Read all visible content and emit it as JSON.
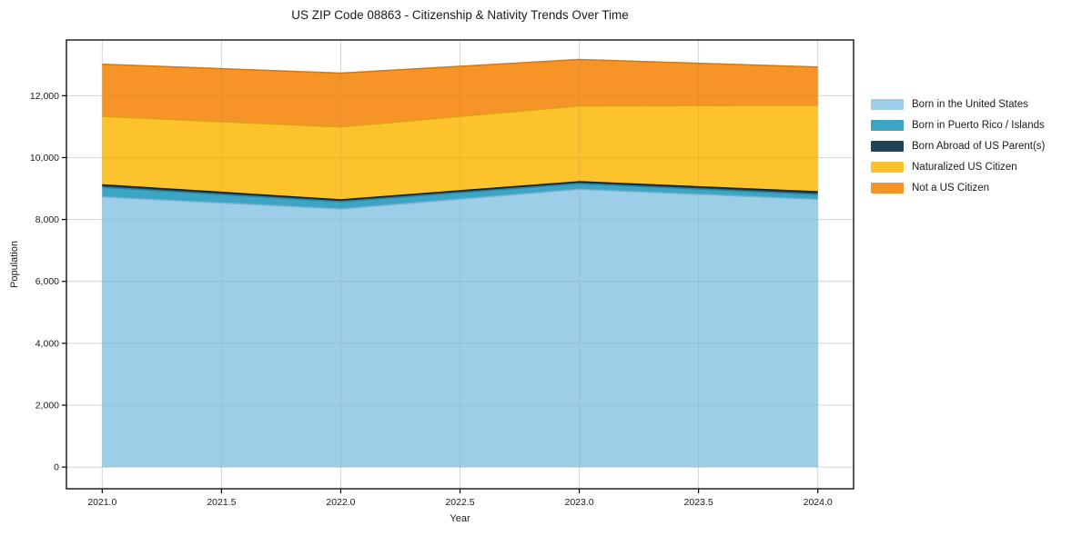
{
  "figure": {
    "background": "#ffffff",
    "text_color": "#1a1a1a",
    "grid_color": "#e8e8e8",
    "spine_color": "#000000"
  },
  "chart_data": {
    "type": "area",
    "stacked": true,
    "title": "US ZIP Code 08863 - Citizenship & Nativity Trends Over Time",
    "xlabel": "Year",
    "ylabel": "Population",
    "x": [
      2021,
      2022,
      2023,
      2024
    ],
    "series": [
      {
        "name": "Born in the United States",
        "color": "#9CCEE7",
        "edge": "#7ab2cf",
        "values": [
          8730,
          8340,
          8975,
          8650
        ]
      },
      {
        "name": "Born in Puerto Rico / Islands",
        "color": "#3BA5C3",
        "edge": "#2b87a2",
        "values": [
          310,
          235,
          185,
          160
        ]
      },
      {
        "name": "Born Abroad of US Parent(s)",
        "color": "#1F4456",
        "edge": "#0f2833",
        "values": [
          80,
          60,
          60,
          85
        ]
      },
      {
        "name": "Naturalized US Citizen",
        "color": "#FDC32D",
        "edge": "#dba313",
        "values": [
          2210,
          2355,
          2450,
          2795
        ]
      },
      {
        "name": "Not a US Citizen",
        "color": "#F79427",
        "edge": "#d4780f",
        "values": [
          1685,
          1740,
          1500,
          1235
        ]
      }
    ],
    "totals": [
      13015,
      12730,
      13170,
      12925
    ],
    "xlim": [
      2020.85,
      2024.15
    ],
    "ylim": [
      -700,
      13800
    ],
    "xticks": [
      2021.0,
      2021.5,
      2022.0,
      2022.5,
      2023.0,
      2023.5,
      2024.0
    ],
    "yticks": [
      0,
      2000,
      4000,
      6000,
      8000,
      10000,
      12000
    ],
    "grid": true,
    "legend_position": "right"
  }
}
